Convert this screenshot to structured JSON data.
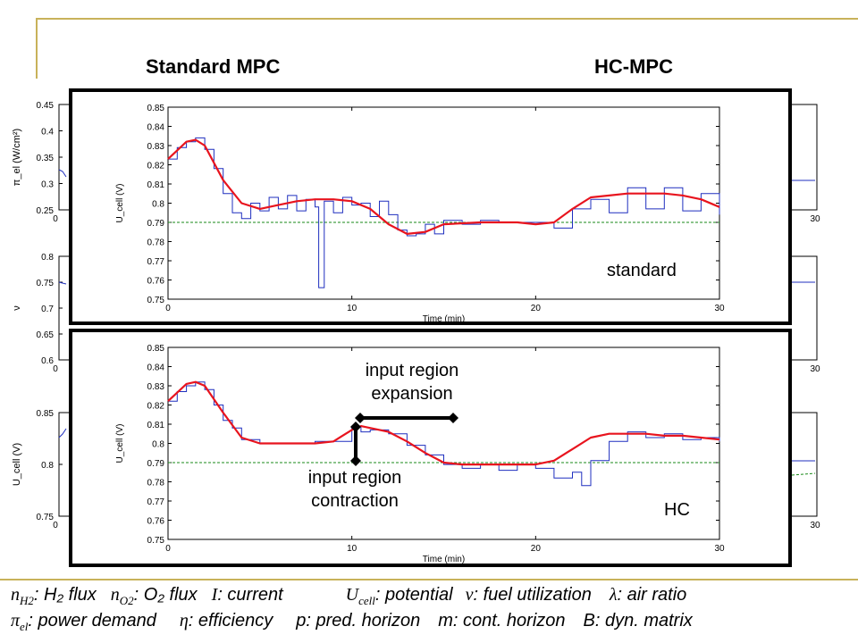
{
  "titles": {
    "left": "Standard MPC",
    "right": "HC-MPC"
  },
  "background_panels": [
    {
      "ylabel": "π_el (W/cm²)",
      "yticks": [
        "0.45",
        "0.4",
        "0.35",
        "0.3",
        "0.25"
      ],
      "xticks": [
        "0",
        "30"
      ]
    },
    {
      "ylabel": "ν",
      "yticks": [
        "0.8",
        "0.75",
        "0.7",
        "0.65",
        "0.6"
      ],
      "xticks": [
        "0",
        "30"
      ]
    },
    {
      "ylabel": "U_cell (V)",
      "yticks": [
        "0.85",
        "0.8",
        "0.75"
      ],
      "xticks": [
        "0",
        "30"
      ]
    }
  ],
  "annotations": {
    "standard": "standard",
    "hc": "HC",
    "expansion": [
      "input region",
      "expansion"
    ],
    "contraction": [
      "input region",
      "contraction"
    ]
  },
  "legend": {
    "line1": [
      {
        "sym": "n",
        "sub": "H2",
        "text": ": H₂ flux"
      },
      {
        "sym": "n",
        "sub": "O2",
        "text": ": O₂ flux"
      },
      {
        "sym": "I",
        "sub": "",
        "text": ": current"
      },
      {
        "sym": "U",
        "sub": "cell",
        "text": ": potential"
      },
      {
        "sym": "ν",
        "sub": "",
        "text": ": fuel utilization"
      },
      {
        "sym": "λ",
        "sub": "",
        "text": ": air ratio"
      }
    ],
    "line2": [
      {
        "sym": "π",
        "sub": "el",
        "text": ": power demand"
      },
      {
        "sym": "η",
        "sub": "",
        "text": ": efficiency"
      },
      {
        "sym": "",
        "sub": "",
        "text": "p: pred. horizon"
      },
      {
        "sym": "",
        "sub": "",
        "text": "m: cont. horizon"
      },
      {
        "sym": "",
        "sub": "",
        "text": "B: dyn. matrix"
      }
    ]
  },
  "colors": {
    "raw": "#1f2fbf",
    "filtered": "#e8141e",
    "reference": "#1a8a1a",
    "accent": "#c8b25a"
  },
  "chart_data": [
    {
      "type": "line",
      "panel": "standard",
      "xlabel": "Time (min)",
      "ylabel": "U_cell (V)",
      "xlim": [
        0,
        30
      ],
      "ylim": [
        0.75,
        0.85
      ],
      "xticks": [
        0,
        10,
        20,
        30
      ],
      "yticks": [
        0.75,
        0.76,
        0.77,
        0.78,
        0.79,
        0.8,
        0.81,
        0.82,
        0.83,
        0.84,
        0.85
      ],
      "reference": 0.79,
      "series": [
        {
          "kind": "raw",
          "x": [
            0,
            0.5,
            1,
            1.5,
            2,
            2.5,
            3,
            3.5,
            4,
            4.5,
            5,
            5.5,
            6,
            6.5,
            7,
            7.5,
            8,
            8.2,
            8.5,
            9,
            9.5,
            10,
            10.5,
            11,
            11.5,
            12,
            12.5,
            13,
            13.5,
            14,
            14.5,
            15,
            16,
            17,
            18,
            19,
            20,
            21,
            22,
            23,
            24,
            25,
            26,
            27,
            28,
            29,
            30
          ],
          "y": [
            0.823,
            0.829,
            0.832,
            0.834,
            0.828,
            0.818,
            0.805,
            0.795,
            0.792,
            0.8,
            0.796,
            0.803,
            0.797,
            0.804,
            0.796,
            0.802,
            0.798,
            0.756,
            0.801,
            0.795,
            0.803,
            0.799,
            0.8,
            0.793,
            0.801,
            0.794,
            0.786,
            0.783,
            0.784,
            0.789,
            0.784,
            0.791,
            0.789,
            0.791,
            0.79,
            0.79,
            0.79,
            0.787,
            0.797,
            0.802,
            0.795,
            0.808,
            0.797,
            0.808,
            0.796,
            0.805,
            0.794
          ]
        },
        {
          "kind": "filtered",
          "x": [
            0,
            1,
            1.5,
            2,
            3,
            4,
            5,
            6,
            7,
            8,
            9,
            10,
            11,
            12,
            13,
            14,
            15,
            17,
            19,
            20,
            21,
            22,
            23,
            24,
            25,
            26,
            27,
            28,
            29,
            30
          ],
          "y": [
            0.823,
            0.832,
            0.833,
            0.83,
            0.812,
            0.8,
            0.797,
            0.799,
            0.801,
            0.802,
            0.802,
            0.801,
            0.797,
            0.789,
            0.784,
            0.785,
            0.789,
            0.79,
            0.79,
            0.789,
            0.79,
            0.797,
            0.803,
            0.804,
            0.805,
            0.805,
            0.805,
            0.804,
            0.802,
            0.798
          ]
        }
      ]
    },
    {
      "type": "line",
      "panel": "hc",
      "xlabel": "Time (min)",
      "ylabel": "U_cell (V)",
      "xlim": [
        0,
        30
      ],
      "ylim": [
        0.75,
        0.85
      ],
      "xticks": [
        0,
        10,
        20,
        30
      ],
      "yticks": [
        0.75,
        0.76,
        0.77,
        0.78,
        0.79,
        0.8,
        0.81,
        0.82,
        0.83,
        0.84,
        0.85
      ],
      "reference": 0.79,
      "series": [
        {
          "kind": "raw",
          "x": [
            0,
            0.5,
            1,
            1.5,
            2,
            2.5,
            3,
            3.5,
            4,
            5,
            6,
            7,
            8,
            9,
            10,
            10.5,
            11,
            12,
            13,
            14,
            15,
            16,
            17,
            18,
            19,
            20,
            21,
            22,
            22.5,
            23,
            24,
            25,
            26,
            27,
            28,
            29,
            30
          ],
          "y": [
            0.822,
            0.827,
            0.83,
            0.832,
            0.828,
            0.82,
            0.812,
            0.808,
            0.802,
            0.8,
            0.8,
            0.8,
            0.801,
            0.801,
            0.809,
            0.806,
            0.807,
            0.805,
            0.799,
            0.794,
            0.789,
            0.787,
            0.789,
            0.786,
            0.789,
            0.787,
            0.782,
            0.785,
            0.778,
            0.791,
            0.801,
            0.806,
            0.803,
            0.805,
            0.802,
            0.803,
            0.801
          ]
        },
        {
          "kind": "filtered",
          "x": [
            0,
            1,
            1.5,
            2,
            3,
            4,
            5,
            6,
            7,
            8,
            9,
            10,
            10.5,
            12,
            13,
            14,
            15,
            16,
            18,
            20,
            21,
            22,
            23,
            24,
            25,
            26,
            27,
            28,
            29,
            30
          ],
          "y": [
            0.822,
            0.831,
            0.832,
            0.83,
            0.816,
            0.803,
            0.8,
            0.8,
            0.8,
            0.8,
            0.801,
            0.807,
            0.809,
            0.806,
            0.801,
            0.795,
            0.79,
            0.789,
            0.789,
            0.789,
            0.791,
            0.797,
            0.803,
            0.805,
            0.805,
            0.805,
            0.804,
            0.804,
            0.803,
            0.802
          ]
        }
      ]
    }
  ]
}
